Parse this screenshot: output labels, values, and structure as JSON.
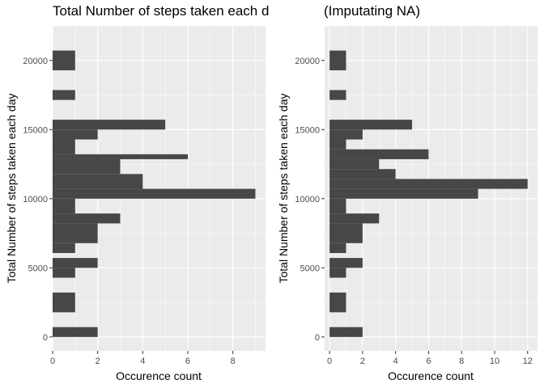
{
  "chart_data": [
    {
      "type": "bar",
      "orientation": "horizontal",
      "title": "Total Number of steps taken each day",
      "xlabel": "Occurence count",
      "ylabel": "Total Number of steps taken each day",
      "xlim": [
        0,
        9.45
      ],
      "ylim": [
        -1000,
        22500
      ],
      "xticks": [
        "0",
        "2",
        "4",
        "6",
        "8"
      ],
      "yticks": [
        "0",
        "5000",
        "10000",
        "15000",
        "20000"
      ],
      "grid": true,
      "bar_color": "#474747",
      "panel_color": "#ebebeb",
      "bars": [
        {
          "y_start": 0,
          "y_end": 714,
          "count": 2
        },
        {
          "y_start": 1786,
          "y_end": 3214,
          "count": 1
        },
        {
          "y_start": 4286,
          "y_end": 5000,
          "count": 1
        },
        {
          "y_start": 5000,
          "y_end": 5714,
          "count": 2
        },
        {
          "y_start": 6071,
          "y_end": 6786,
          "count": 1
        },
        {
          "y_start": 6786,
          "y_end": 8214,
          "count": 2
        },
        {
          "y_start": 8214,
          "y_end": 8929,
          "count": 3
        },
        {
          "y_start": 8929,
          "y_end": 10000,
          "count": 1
        },
        {
          "y_start": 10000,
          "y_end": 10714,
          "count": 9
        },
        {
          "y_start": 10714,
          "y_end": 11786,
          "count": 4
        },
        {
          "y_start": 11786,
          "y_end": 12857,
          "count": 3
        },
        {
          "y_start": 12857,
          "y_end": 13214,
          "count": 6
        },
        {
          "y_start": 13214,
          "y_end": 14286,
          "count": 1
        },
        {
          "y_start": 14286,
          "y_end": 15000,
          "count": 2
        },
        {
          "y_start": 15000,
          "y_end": 15714,
          "count": 5
        },
        {
          "y_start": 17143,
          "y_end": 17857,
          "count": 1
        },
        {
          "y_start": 19286,
          "y_end": 20714,
          "count": 1
        }
      ]
    },
    {
      "type": "bar",
      "orientation": "horizontal",
      "title": "(Imputating NA)",
      "xlabel": "Occurence count",
      "ylabel": "Total Number of steps taken each day",
      "xlim": [
        -0.3,
        12.6
      ],
      "ylim": [
        -1000,
        22500
      ],
      "xticks": [
        "0",
        "2",
        "4",
        "6",
        "8",
        "10",
        "12"
      ],
      "yticks": [
        "0",
        "5000",
        "10000",
        "15000",
        "20000"
      ],
      "grid": true,
      "bar_color": "#474747",
      "panel_color": "#ebebeb",
      "bars": [
        {
          "y_start": 0,
          "y_end": 714,
          "count": 2
        },
        {
          "y_start": 1786,
          "y_end": 3214,
          "count": 1
        },
        {
          "y_start": 4286,
          "y_end": 5000,
          "count": 1
        },
        {
          "y_start": 5000,
          "y_end": 5714,
          "count": 2
        },
        {
          "y_start": 6071,
          "y_end": 6786,
          "count": 1
        },
        {
          "y_start": 6786,
          "y_end": 8214,
          "count": 2
        },
        {
          "y_start": 8214,
          "y_end": 8929,
          "count": 3
        },
        {
          "y_start": 8929,
          "y_end": 10000,
          "count": 1
        },
        {
          "y_start": 10000,
          "y_end": 10714,
          "count": 9
        },
        {
          "y_start": 10714,
          "y_end": 11429,
          "count": 12
        },
        {
          "y_start": 11429,
          "y_end": 12143,
          "count": 4
        },
        {
          "y_start": 12143,
          "y_end": 12857,
          "count": 3
        },
        {
          "y_start": 12857,
          "y_end": 13571,
          "count": 6
        },
        {
          "y_start": 13571,
          "y_end": 14286,
          "count": 1
        },
        {
          "y_start": 14286,
          "y_end": 15000,
          "count": 2
        },
        {
          "y_start": 15000,
          "y_end": 15714,
          "count": 5
        },
        {
          "y_start": 17143,
          "y_end": 17857,
          "count": 1
        },
        {
          "y_start": 19286,
          "y_end": 20714,
          "count": 1
        }
      ]
    }
  ]
}
